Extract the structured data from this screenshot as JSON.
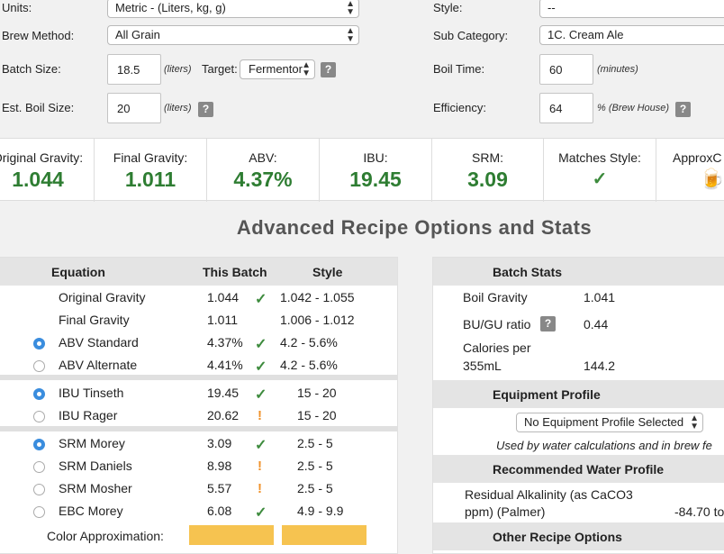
{
  "form": {
    "units_label": "Units:",
    "units_value": "Metric - (Liters, kg, g)",
    "method_label": "Brew Method:",
    "method_value": "All Grain",
    "batch_label": "Batch Size:",
    "batch_value": "18.5",
    "batch_unit": "(liters)",
    "target_label": "Target:",
    "target_value": "Fermentor",
    "boil_label": "Est. Boil Size:",
    "boil_value": "20",
    "boil_unit": "(liters)",
    "style_label": "Style:",
    "style_value": "--",
    "subcat_label": "Sub Category:",
    "subcat_value": "1C. Cream Ale",
    "boiltime_label": "Boil Time:",
    "boiltime_value": "60",
    "boiltime_unit": "(minutes)",
    "eff_label": "Efficiency:",
    "eff_value": "64",
    "eff_unit": "% (Brew House)",
    "help": "?"
  },
  "stats": [
    {
      "title": "Original Gravity:",
      "value": "1.044"
    },
    {
      "title": "Final Gravity:",
      "value": "1.011"
    },
    {
      "title": "ABV:",
      "value": "4.37%"
    },
    {
      "title": "IBU:",
      "value": "19.45"
    },
    {
      "title": "SRM:",
      "value": "3.09"
    },
    {
      "title": "Matches Style:",
      "value": "✓"
    },
    {
      "title": "ApproxC",
      "value": "🍺"
    }
  ],
  "heading": "Advanced Recipe Options and Stats",
  "equations": {
    "headers": [
      "Equation",
      "This Batch",
      "Style"
    ],
    "rows": [
      {
        "name": "Original Gravity",
        "batch": "1.044",
        "mark": "check",
        "style": "1.042 - 1.055",
        "radio": "none"
      },
      {
        "name": "Final Gravity",
        "batch": "1.011",
        "mark": "none",
        "style": "1.006 - 1.012",
        "radio": "none"
      },
      {
        "name": "ABV Standard",
        "batch": "4.37%",
        "mark": "check",
        "style": "4.2 - 5.6%",
        "radio": "on"
      },
      {
        "name": "ABV Alternate",
        "batch": "4.41%",
        "mark": "check",
        "style": "4.2 - 5.6%",
        "radio": "off"
      },
      {
        "name": "IBU Tinseth",
        "batch": "19.45",
        "mark": "check",
        "style": "15 - 20",
        "radio": "on"
      },
      {
        "name": "IBU Rager",
        "batch": "20.62",
        "mark": "warn",
        "style": "15 - 20",
        "radio": "off"
      },
      {
        "name": "SRM Morey",
        "batch": "3.09",
        "mark": "check",
        "style": "2.5 - 5",
        "radio": "on"
      },
      {
        "name": "SRM Daniels",
        "batch": "8.98",
        "mark": "warn",
        "style": "2.5 - 5",
        "radio": "off"
      },
      {
        "name": "SRM Mosher",
        "batch": "5.57",
        "mark": "warn",
        "style": "2.5 - 5",
        "radio": "off"
      },
      {
        "name": "EBC Morey",
        "batch": "6.08",
        "mark": "check",
        "style": "4.9 - 9.9",
        "radio": "off"
      }
    ],
    "color_label": "Color Approximation:"
  },
  "batch_stats": {
    "header": "Batch Stats",
    "boil_gravity_label": "Boil Gravity",
    "boil_gravity": "1.041",
    "bugu_label": "BU/GU ratio",
    "bugu": "0.44",
    "cal_label1": "Calories per",
    "cal_label2": "355mL",
    "cal": "144.2",
    "equip_header": "Equipment Profile",
    "equip_value": "No Equipment Profile Selected",
    "equip_note": "Used by water calculations and in brew fe",
    "water_header": "Recommended Water Profile",
    "ra_label1": "Residual Alkalinity (as CaCO3",
    "ra_label2": "ppm) (Palmer)",
    "ra_value": "-84.70 to",
    "other_header": "Other Recipe Options"
  },
  "colors": {
    "accent_green": "#2e7d32",
    "check": "#3d8b3d",
    "warn": "#f0922b",
    "swatch": "#f6c350",
    "radio": "#3a8dde"
  }
}
